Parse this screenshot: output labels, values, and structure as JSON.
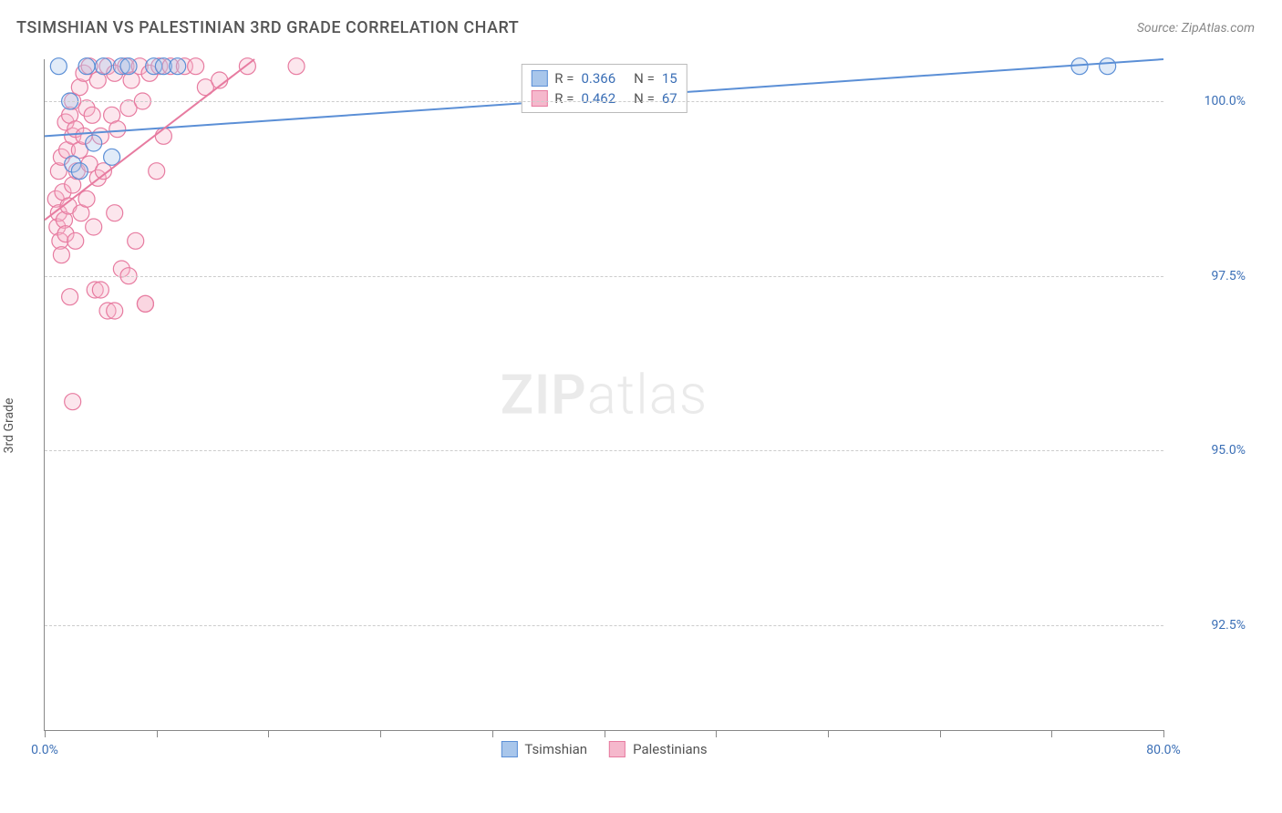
{
  "header": {
    "title": "TSIMSHIAN VS PALESTINIAN 3RD GRADE CORRELATION CHART",
    "source": "Source: ZipAtlas.com"
  },
  "chart": {
    "type": "scatter",
    "y_label": "3rd Grade",
    "watermark_bold": "ZIP",
    "watermark_light": "atlas",
    "background_color": "#ffffff",
    "grid_color": "#cccccc",
    "axis_color": "#888888",
    "label_color": "#3b6fb6",
    "xlim": [
      0,
      80
    ],
    "ylim": [
      91,
      100.6
    ],
    "x_ticks": [
      0,
      8,
      16,
      24,
      32,
      40,
      48,
      56,
      64,
      72,
      80
    ],
    "x_tick_labels": {
      "0": "0.0%",
      "80": "80.0%"
    },
    "y_ticks": [
      92.5,
      95.0,
      97.5,
      100.0
    ],
    "y_tick_labels": [
      "92.5%",
      "95.0%",
      "97.5%",
      "100.0%"
    ],
    "marker_radius": 9,
    "marker_opacity": 0.35,
    "line_width": 2,
    "series": [
      {
        "name": "Tsimshian",
        "color": "#5b8fd6",
        "fill": "#a8c6eb",
        "R": "0.366",
        "N": "15",
        "trend": {
          "x1": 0,
          "y1": 99.5,
          "x2": 80,
          "y2": 100.6
        },
        "points": [
          [
            1.0,
            100.5
          ],
          [
            1.8,
            100.0
          ],
          [
            2.0,
            99.1
          ],
          [
            2.5,
            99.0
          ],
          [
            3.0,
            100.5
          ],
          [
            3.5,
            99.4
          ],
          [
            4.2,
            100.5
          ],
          [
            4.8,
            99.2
          ],
          [
            5.5,
            100.5
          ],
          [
            6.0,
            100.5
          ],
          [
            7.8,
            100.5
          ],
          [
            8.5,
            100.5
          ],
          [
            9.5,
            100.5
          ],
          [
            74.0,
            100.5
          ],
          [
            76.0,
            100.5
          ]
        ]
      },
      {
        "name": "Palestinians",
        "color": "#e77ba0",
        "fill": "#f5b8cc",
        "R": "0.462",
        "N": "67",
        "trend": {
          "x1": 0,
          "y1": 98.3,
          "x2": 15,
          "y2": 100.6
        },
        "points": [
          [
            0.8,
            98.6
          ],
          [
            0.9,
            98.2
          ],
          [
            1.0,
            99.0
          ],
          [
            1.0,
            98.4
          ],
          [
            1.1,
            98.0
          ],
          [
            1.2,
            97.8
          ],
          [
            1.2,
            99.2
          ],
          [
            1.3,
            98.7
          ],
          [
            1.4,
            98.3
          ],
          [
            1.5,
            99.7
          ],
          [
            1.5,
            98.1
          ],
          [
            1.6,
            99.3
          ],
          [
            1.7,
            98.5
          ],
          [
            1.8,
            97.2
          ],
          [
            1.8,
            99.8
          ],
          [
            2.0,
            100.0
          ],
          [
            2.0,
            98.8
          ],
          [
            2.0,
            95.7
          ],
          [
            2.0,
            99.5
          ],
          [
            2.2,
            98.0
          ],
          [
            2.2,
            99.6
          ],
          [
            2.3,
            99.0
          ],
          [
            2.5,
            99.3
          ],
          [
            2.5,
            100.2
          ],
          [
            2.6,
            98.4
          ],
          [
            2.8,
            99.5
          ],
          [
            2.8,
            100.4
          ],
          [
            3.0,
            99.9
          ],
          [
            3.0,
            98.6
          ],
          [
            3.2,
            100.5
          ],
          [
            3.2,
            99.1
          ],
          [
            3.4,
            99.8
          ],
          [
            3.5,
            98.2
          ],
          [
            3.6,
            97.3
          ],
          [
            3.8,
            100.3
          ],
          [
            3.8,
            98.9
          ],
          [
            4.0,
            99.5
          ],
          [
            4.0,
            97.3
          ],
          [
            4.2,
            99.0
          ],
          [
            4.5,
            100.5
          ],
          [
            4.5,
            97.0
          ],
          [
            4.8,
            99.8
          ],
          [
            5.0,
            100.4
          ],
          [
            5.0,
            98.4
          ],
          [
            5.0,
            97.0
          ],
          [
            5.2,
            99.6
          ],
          [
            5.5,
            97.6
          ],
          [
            5.8,
            100.5
          ],
          [
            6.0,
            99.9
          ],
          [
            6.0,
            97.5
          ],
          [
            6.2,
            100.3
          ],
          [
            6.5,
            98.0
          ],
          [
            6.8,
            100.5
          ],
          [
            7.0,
            100.0
          ],
          [
            7.2,
            97.1
          ],
          [
            7.2,
            97.1
          ],
          [
            7.5,
            100.4
          ],
          [
            8.0,
            99.0
          ],
          [
            8.2,
            100.5
          ],
          [
            8.5,
            99.5
          ],
          [
            9.0,
            100.5
          ],
          [
            10.0,
            100.5
          ],
          [
            10.8,
            100.5
          ],
          [
            11.5,
            100.2
          ],
          [
            12.5,
            100.3
          ],
          [
            14.5,
            100.5
          ],
          [
            18.0,
            100.5
          ]
        ]
      }
    ]
  },
  "legend_bottom": {
    "items": [
      {
        "label": "Tsimshian",
        "fill": "#a8c6eb",
        "stroke": "#5b8fd6"
      },
      {
        "label": "Palestinians",
        "fill": "#f5b8cc",
        "stroke": "#e77ba0"
      }
    ]
  }
}
